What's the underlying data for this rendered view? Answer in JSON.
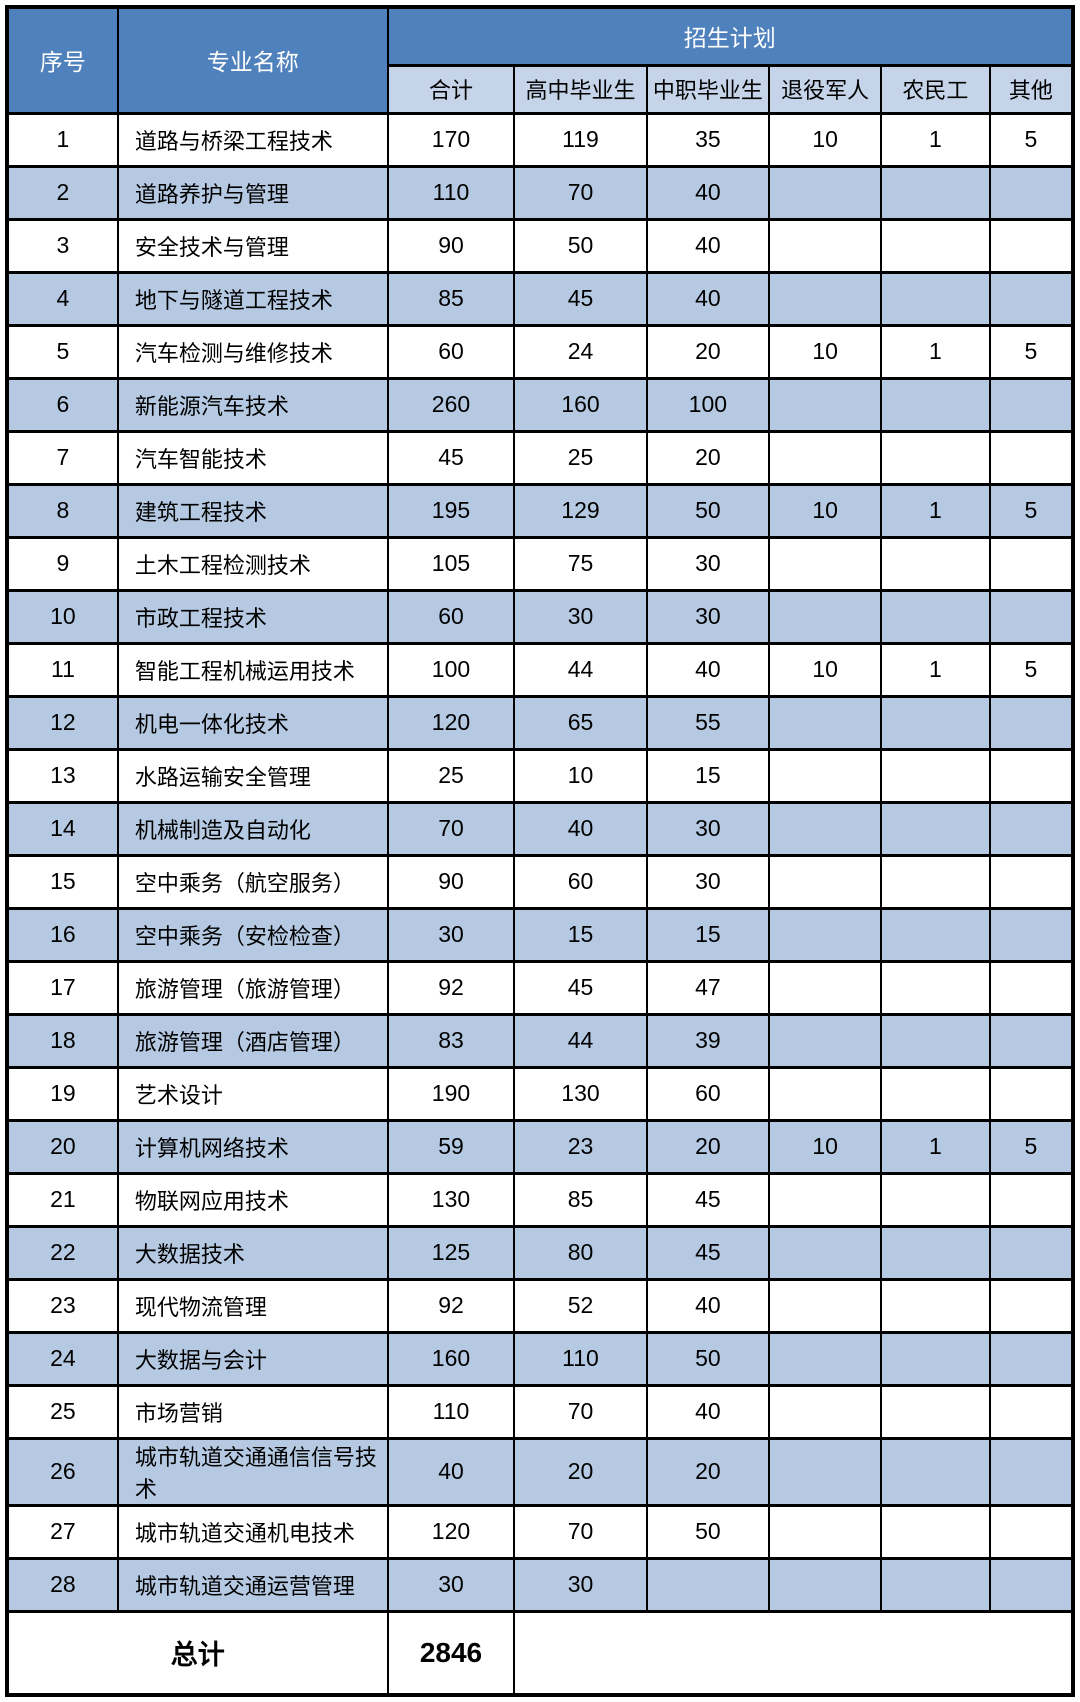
{
  "colors": {
    "header_bg": "#4f81bd",
    "header_text": "#ffffff",
    "subheader_bg": "#c5d4e8",
    "row_stripe_bg": "#b5c9e2",
    "row_plain_bg": "#ffffff",
    "border": "#000000"
  },
  "table": {
    "header": {
      "col_no": "序号",
      "col_major": "专业名称",
      "group_plan": "招生计划",
      "sub_columns": [
        "合计",
        "高中毕业生",
        "中职毕业生",
        "退役军人",
        "农民工",
        "其他"
      ]
    },
    "rows": [
      {
        "no": "1",
        "major": "道路与桥梁工程技术",
        "total": "170",
        "high_school": "119",
        "vocational": "35",
        "veterans": "10",
        "migrant_workers": "1",
        "others": "5"
      },
      {
        "no": "2",
        "major": "道路养护与管理",
        "total": "110",
        "high_school": "70",
        "vocational": "40",
        "veterans": "",
        "migrant_workers": "",
        "others": ""
      },
      {
        "no": "3",
        "major": "安全技术与管理",
        "total": "90",
        "high_school": "50",
        "vocational": "40",
        "veterans": "",
        "migrant_workers": "",
        "others": ""
      },
      {
        "no": "4",
        "major": "地下与隧道工程技术",
        "total": "85",
        "high_school": "45",
        "vocational": "40",
        "veterans": "",
        "migrant_workers": "",
        "others": ""
      },
      {
        "no": "5",
        "major": "汽车检测与维修技术",
        "total": "60",
        "high_school": "24",
        "vocational": "20",
        "veterans": "10",
        "migrant_workers": "1",
        "others": "5"
      },
      {
        "no": "6",
        "major": "新能源汽车技术",
        "total": "260",
        "high_school": "160",
        "vocational": "100",
        "veterans": "",
        "migrant_workers": "",
        "others": ""
      },
      {
        "no": "7",
        "major": "汽车智能技术",
        "total": "45",
        "high_school": "25",
        "vocational": "20",
        "veterans": "",
        "migrant_workers": "",
        "others": ""
      },
      {
        "no": "8",
        "major": "建筑工程技术",
        "total": "195",
        "high_school": "129",
        "vocational": "50",
        "veterans": "10",
        "migrant_workers": "1",
        "others": "5"
      },
      {
        "no": "9",
        "major": "土木工程检测技术",
        "total": "105",
        "high_school": "75",
        "vocational": "30",
        "veterans": "",
        "migrant_workers": "",
        "others": ""
      },
      {
        "no": "10",
        "major": "市政工程技术",
        "total": "60",
        "high_school": "30",
        "vocational": "30",
        "veterans": "",
        "migrant_workers": "",
        "others": ""
      },
      {
        "no": "11",
        "major": "智能工程机械运用技术",
        "total": "100",
        "high_school": "44",
        "vocational": "40",
        "veterans": "10",
        "migrant_workers": "1",
        "others": "5"
      },
      {
        "no": "12",
        "major": "机电一体化技术",
        "total": "120",
        "high_school": "65",
        "vocational": "55",
        "veterans": "",
        "migrant_workers": "",
        "others": ""
      },
      {
        "no": "13",
        "major": "水路运输安全管理",
        "total": "25",
        "high_school": "10",
        "vocational": "15",
        "veterans": "",
        "migrant_workers": "",
        "others": ""
      },
      {
        "no": "14",
        "major": "机械制造及自动化",
        "total": "70",
        "high_school": "40",
        "vocational": "30",
        "veterans": "",
        "migrant_workers": "",
        "others": ""
      },
      {
        "no": "15",
        "major": "空中乘务（航空服务）",
        "total": "90",
        "high_school": "60",
        "vocational": "30",
        "veterans": "",
        "migrant_workers": "",
        "others": ""
      },
      {
        "no": "16",
        "major": "空中乘务（安检检查）",
        "total": "30",
        "high_school": "15",
        "vocational": "15",
        "veterans": "",
        "migrant_workers": "",
        "others": ""
      },
      {
        "no": "17",
        "major": "旅游管理（旅游管理）",
        "total": "92",
        "high_school": "45",
        "vocational": "47",
        "veterans": "",
        "migrant_workers": "",
        "others": ""
      },
      {
        "no": "18",
        "major": "旅游管理（酒店管理）",
        "total": "83",
        "high_school": "44",
        "vocational": "39",
        "veterans": "",
        "migrant_workers": "",
        "others": ""
      },
      {
        "no": "19",
        "major": "艺术设计",
        "total": "190",
        "high_school": "130",
        "vocational": "60",
        "veterans": "",
        "migrant_workers": "",
        "others": ""
      },
      {
        "no": "20",
        "major": "计算机网络技术",
        "total": "59",
        "high_school": "23",
        "vocational": "20",
        "veterans": "10",
        "migrant_workers": "1",
        "others": "5"
      },
      {
        "no": "21",
        "major": "物联网应用技术",
        "total": "130",
        "high_school": "85",
        "vocational": "45",
        "veterans": "",
        "migrant_workers": "",
        "others": ""
      },
      {
        "no": "22",
        "major": "大数据技术",
        "total": "125",
        "high_school": "80",
        "vocational": "45",
        "veterans": "",
        "migrant_workers": "",
        "others": ""
      },
      {
        "no": "23",
        "major": "现代物流管理",
        "total": "92",
        "high_school": "52",
        "vocational": "40",
        "veterans": "",
        "migrant_workers": "",
        "others": ""
      },
      {
        "no": "24",
        "major": "大数据与会计",
        "total": "160",
        "high_school": "110",
        "vocational": "50",
        "veterans": "",
        "migrant_workers": "",
        "others": ""
      },
      {
        "no": "25",
        "major": "市场营销",
        "total": "110",
        "high_school": "70",
        "vocational": "40",
        "veterans": "",
        "migrant_workers": "",
        "others": ""
      },
      {
        "no": "26",
        "major": "城市轨道交通通信信号技术",
        "total": "40",
        "high_school": "20",
        "vocational": "20",
        "veterans": "",
        "migrant_workers": "",
        "others": ""
      },
      {
        "no": "27",
        "major": "城市轨道交通机电技术",
        "total": "120",
        "high_school": "70",
        "vocational": "50",
        "veterans": "",
        "migrant_workers": "",
        "others": ""
      },
      {
        "no": "28",
        "major": "城市轨道交通运营管理",
        "total": "30",
        "high_school": "30",
        "vocational": "",
        "veterans": "",
        "migrant_workers": "",
        "others": ""
      }
    ],
    "footer": {
      "label": "总计",
      "grand_total": "2846"
    }
  }
}
